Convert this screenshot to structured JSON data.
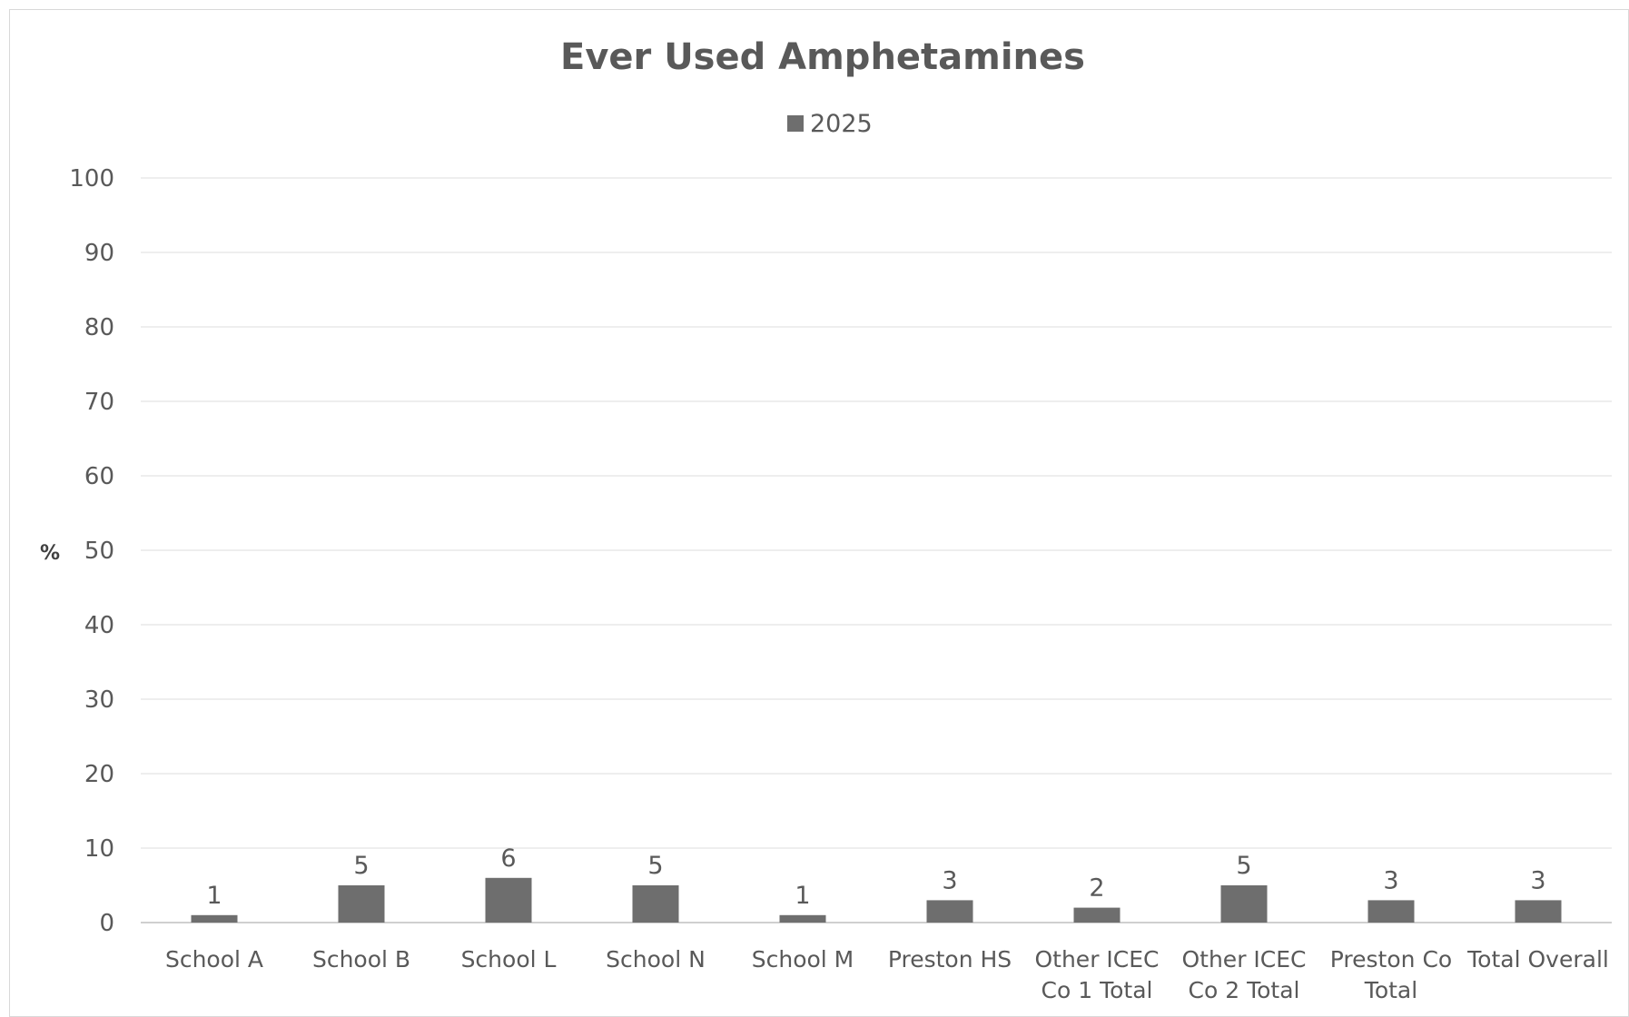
{
  "chart_data": {
    "type": "bar",
    "title": "Ever Used Amphetamines",
    "ylabel": "%",
    "xlabel": "",
    "ylim": [
      0,
      100
    ],
    "yticks": [
      0,
      10,
      20,
      30,
      40,
      50,
      60,
      70,
      80,
      90,
      100
    ],
    "grid": true,
    "legend_position": "top-center",
    "categories": [
      [
        "School A"
      ],
      [
        "School B"
      ],
      [
        "School L"
      ],
      [
        "School N"
      ],
      [
        "School M"
      ],
      [
        "Preston HS"
      ],
      [
        "Other ICEC",
        "Co 1 Total"
      ],
      [
        "Other ICEC",
        "Co 2 Total"
      ],
      [
        "Preston Co",
        "Total"
      ],
      [
        "Total Overall"
      ]
    ],
    "series": [
      {
        "name": "2025",
        "color": "#6e6e6e",
        "values": [
          1,
          5,
          6,
          5,
          1,
          3,
          2,
          5,
          3,
          3
        ]
      }
    ],
    "data_labels": true
  }
}
